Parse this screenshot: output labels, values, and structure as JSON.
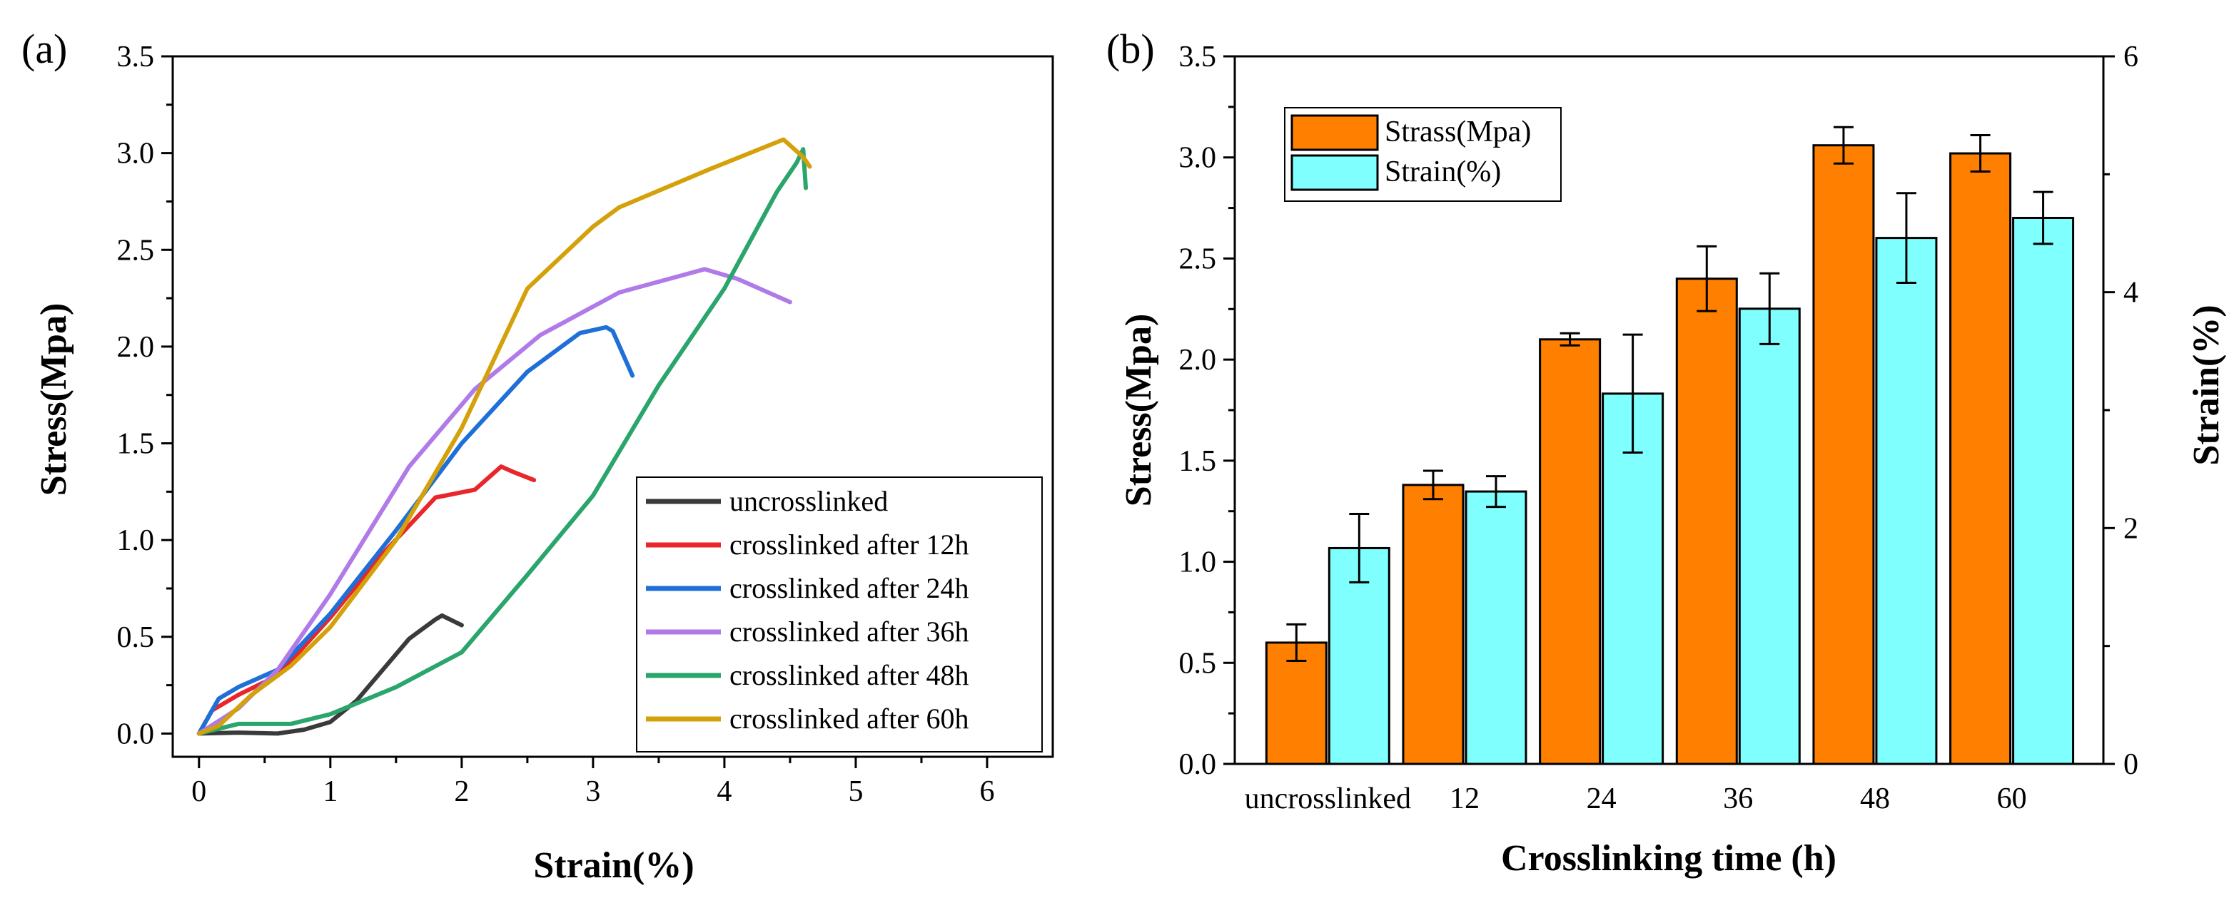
{
  "chart_data": [
    {
      "type": "line",
      "panel_label": "(a)",
      "xlabel": "Strain(%)",
      "ylabel": "Stress(Mpa)",
      "xlim": [
        -0.2,
        6.5
      ],
      "ylim": [
        -0.12,
        3.5
      ],
      "xticks": [
        0,
        1,
        2,
        3,
        4,
        5,
        6
      ],
      "yticks": [
        0.0,
        0.5,
        1.0,
        1.5,
        2.0,
        2.5,
        3.0,
        3.5
      ],
      "ytick_labels": [
        "0.0",
        "0.5",
        "1.0",
        "1.5",
        "2.0",
        "2.5",
        "3.0",
        "3.5"
      ],
      "legend_position": "bottom-right",
      "series": [
        {
          "name": "uncrosslinked",
          "color": "#3a3a3a",
          "points": [
            [
              0,
              0
            ],
            [
              0.3,
              0.005
            ],
            [
              0.6,
              0.0
            ],
            [
              0.8,
              0.02
            ],
            [
              1.0,
              0.06
            ],
            [
              1.2,
              0.17
            ],
            [
              1.4,
              0.33
            ],
            [
              1.6,
              0.49
            ],
            [
              1.8,
              0.59
            ],
            [
              1.85,
              0.61
            ],
            [
              2.0,
              0.56
            ]
          ]
        },
        {
          "name": "crosslinked after 12h",
          "color": "#e8262b",
          "points": [
            [
              0,
              0
            ],
            [
              0.1,
              0.12
            ],
            [
              0.3,
              0.2
            ],
            [
              0.6,
              0.3
            ],
            [
              1.0,
              0.6
            ],
            [
              1.4,
              0.93
            ],
            [
              1.8,
              1.22
            ],
            [
              2.1,
              1.26
            ],
            [
              2.3,
              1.38
            ],
            [
              2.4,
              1.35
            ],
            [
              2.55,
              1.31
            ]
          ]
        },
        {
          "name": "crosslinked after 24h",
          "color": "#1f6fd8",
          "points": [
            [
              0,
              0
            ],
            [
              0.15,
              0.18
            ],
            [
              0.3,
              0.24
            ],
            [
              0.6,
              0.33
            ],
            [
              1.0,
              0.62
            ],
            [
              1.5,
              1.05
            ],
            [
              2.0,
              1.5
            ],
            [
              2.5,
              1.87
            ],
            [
              2.9,
              2.07
            ],
            [
              3.1,
              2.1
            ],
            [
              3.15,
              2.08
            ],
            [
              3.3,
              1.85
            ]
          ]
        },
        {
          "name": "crosslinked after 36h",
          "color": "#b07ae8",
          "points": [
            [
              0,
              0
            ],
            [
              0.3,
              0.13
            ],
            [
              0.6,
              0.33
            ],
            [
              1.0,
              0.72
            ],
            [
              1.6,
              1.38
            ],
            [
              2.1,
              1.78
            ],
            [
              2.6,
              2.06
            ],
            [
              3.2,
              2.28
            ],
            [
              3.85,
              2.4
            ],
            [
              4.1,
              2.35
            ],
            [
              4.5,
              2.23
            ]
          ]
        },
        {
          "name": "crosslinked after 48h",
          "color": "#2aa56b",
          "points": [
            [
              0,
              0
            ],
            [
              0.3,
              0.05
            ],
            [
              0.7,
              0.05
            ],
            [
              1.0,
              0.1
            ],
            [
              1.5,
              0.24
            ],
            [
              2.0,
              0.42
            ],
            [
              2.5,
              0.82
            ],
            [
              3.0,
              1.23
            ],
            [
              3.5,
              1.8
            ],
            [
              4.0,
              2.3
            ],
            [
              4.4,
              2.8
            ],
            [
              4.55,
              2.95
            ],
            [
              4.6,
              3.02
            ],
            [
              4.62,
              2.82
            ]
          ]
        },
        {
          "name": "crosslinked after 60h",
          "color": "#d4a10a",
          "points": [
            [
              0,
              0
            ],
            [
              0.15,
              0.04
            ],
            [
              0.4,
              0.2
            ],
            [
              0.7,
              0.35
            ],
            [
              1.0,
              0.55
            ],
            [
              1.5,
              1.0
            ],
            [
              2.0,
              1.58
            ],
            [
              2.5,
              2.3
            ],
            [
              3.0,
              2.62
            ],
            [
              3.2,
              2.72
            ],
            [
              3.9,
              2.92
            ],
            [
              4.45,
              3.07
            ],
            [
              4.6,
              2.98
            ],
            [
              4.65,
              2.93
            ]
          ]
        }
      ]
    },
    {
      "type": "bar",
      "panel_label": "(b)",
      "xlabel": "Crosslinking time (h)",
      "ylabel": "Stress(Mpa)",
      "y2label": "Strain(%)",
      "categories": [
        "uncrosslinked",
        "12",
        "24",
        "36",
        "48",
        "60"
      ],
      "ylim": [
        0,
        3.5
      ],
      "y2lim": [
        0,
        6
      ],
      "yticks": [
        0.0,
        0.5,
        1.0,
        1.5,
        2.0,
        2.5,
        3.0,
        3.5
      ],
      "ytick_labels": [
        "0.0",
        "0.5",
        "1.0",
        "1.5",
        "2.0",
        "2.5",
        "3.0",
        "3.5"
      ],
      "y2ticks": [
        0,
        2,
        4,
        6
      ],
      "y2tick_labels": [
        "0",
        "2",
        "4",
        "6"
      ],
      "legend_position": "top-left",
      "series": [
        {
          "name": "Strass(Mpa)",
          "axis": "left",
          "color": "#ff8000",
          "values": [
            0.6,
            1.38,
            2.1,
            2.4,
            3.06,
            3.02
          ],
          "errors": [
            0.09,
            0.07,
            0.03,
            0.16,
            0.09,
            0.09
          ]
        },
        {
          "name": "Strain(%)",
          "axis": "right",
          "color": "#80ffff",
          "values": [
            1.83,
            2.31,
            3.14,
            3.86,
            4.46,
            4.63
          ],
          "errors": [
            0.29,
            0.13,
            0.5,
            0.3,
            0.38,
            0.22
          ]
        }
      ]
    }
  ]
}
